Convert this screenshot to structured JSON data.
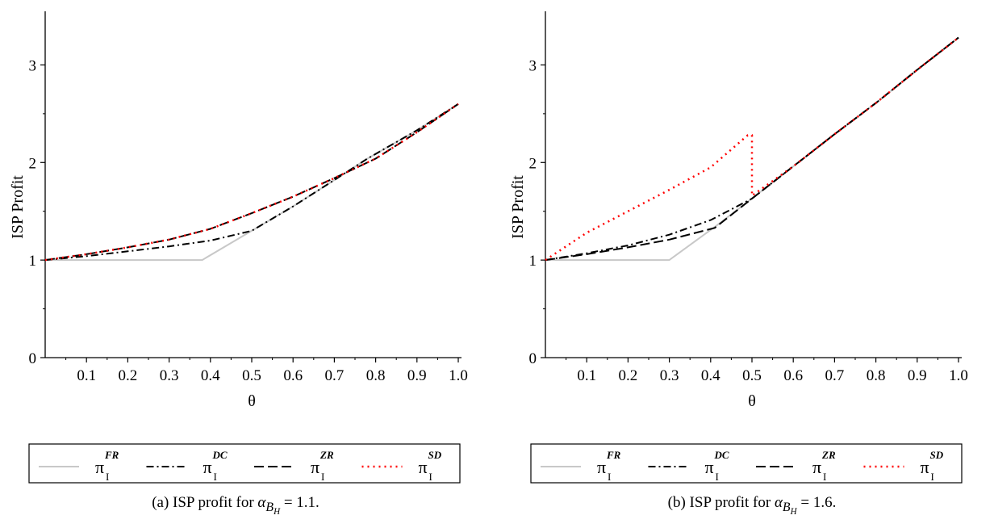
{
  "chart_data": [
    {
      "type": "line",
      "title": "",
      "xlabel": "θ",
      "ylabel": "ISP Profit",
      "xlim": [
        0,
        1.0
      ],
      "ylim": [
        0,
        3.5
      ],
      "x_ticks": [
        0.1,
        0.2,
        0.3,
        0.4,
        0.5,
        0.6,
        0.7,
        0.8,
        0.9,
        1.0
      ],
      "x_tick_labels": [
        "0.1",
        "0.2",
        "0.3",
        "0.4",
        "0.5",
        "0.6",
        "0.7",
        "0.8",
        "0.9",
        "1.0"
      ],
      "y_ticks": [
        0,
        1,
        2,
        3
      ],
      "y_tick_labels": [
        "0",
        "1",
        "2",
        "3"
      ],
      "legend_position": "bottom",
      "series": [
        {
          "key": "FR",
          "symbol": "π",
          "sup": "FR",
          "sub": "I",
          "style": "solid",
          "color": "#c8c8c8",
          "x": [
            0,
            0.38,
            0.5,
            0.6,
            0.7,
            0.78,
            0.9,
            1.0
          ],
          "y": [
            1.0,
            1.0,
            1.3,
            1.55,
            1.82,
            2.04,
            2.33,
            2.6
          ]
        },
        {
          "key": "DC",
          "symbol": "π",
          "sup": "DC",
          "sub": "I",
          "style": "dashdot",
          "color": "#000000",
          "x": [
            0,
            0.1,
            0.2,
            0.3,
            0.4,
            0.5,
            0.6,
            0.7,
            0.78,
            0.9,
            1.0
          ],
          "y": [
            1.0,
            1.04,
            1.09,
            1.14,
            1.2,
            1.3,
            1.55,
            1.82,
            2.04,
            2.33,
            2.6
          ]
        },
        {
          "key": "ZR",
          "symbol": "π",
          "sup": "ZR",
          "sub": "I",
          "style": "dash",
          "color": "#000000",
          "x": [
            0,
            0.1,
            0.2,
            0.3,
            0.4,
            0.5,
            0.6,
            0.7,
            0.8,
            0.9,
            1.0
          ],
          "y": [
            1.0,
            1.06,
            1.13,
            1.21,
            1.32,
            1.48,
            1.65,
            1.84,
            2.04,
            2.31,
            2.6
          ]
        },
        {
          "key": "SD",
          "symbol": "π",
          "sup": "SD",
          "sub": "I",
          "style": "dot",
          "color": "#ff0000",
          "x": [
            0,
            0.1,
            0.2,
            0.3,
            0.4,
            0.5,
            0.6,
            0.7,
            0.8,
            0.9,
            1.0
          ],
          "y": [
            1.0,
            1.06,
            1.13,
            1.21,
            1.32,
            1.48,
            1.65,
            1.84,
            2.04,
            2.31,
            2.6
          ]
        }
      ]
    },
    {
      "type": "line",
      "title": "",
      "xlabel": "θ",
      "ylabel": "ISP Profit",
      "xlim": [
        0,
        1.0
      ],
      "ylim": [
        0,
        3.5
      ],
      "x_ticks": [
        0.1,
        0.2,
        0.3,
        0.4,
        0.5,
        0.6,
        0.7,
        0.8,
        0.9,
        1.0
      ],
      "x_tick_labels": [
        "0.1",
        "0.2",
        "0.3",
        "0.4",
        "0.5",
        "0.6",
        "0.7",
        "0.8",
        "0.9",
        "1.0"
      ],
      "y_ticks": [
        0,
        1,
        2,
        3
      ],
      "y_tick_labels": [
        "0",
        "1",
        "2",
        "3"
      ],
      "legend_position": "bottom",
      "series": [
        {
          "key": "FR",
          "symbol": "π",
          "sup": "FR",
          "sub": "I",
          "style": "solid",
          "color": "#c8c8c8",
          "x": [
            0,
            0.3,
            0.41,
            0.5,
            0.6,
            0.7,
            0.8,
            0.9,
            1.0
          ],
          "y": [
            1.0,
            1.0,
            1.34,
            1.63,
            1.96,
            2.29,
            2.61,
            2.95,
            3.28
          ]
        },
        {
          "key": "DC",
          "symbol": "π",
          "sup": "DC",
          "sub": "I",
          "style": "dashdot",
          "color": "#000000",
          "x": [
            0,
            0.1,
            0.2,
            0.3,
            0.4,
            0.5,
            0.6,
            0.7,
            0.8,
            0.9,
            1.0
          ],
          "y": [
            1.0,
            1.07,
            1.15,
            1.26,
            1.41,
            1.63,
            1.96,
            2.29,
            2.61,
            2.95,
            3.28
          ]
        },
        {
          "key": "ZR",
          "symbol": "π",
          "sup": "ZR",
          "sub": "I",
          "style": "dash",
          "color": "#000000",
          "x": [
            0,
            0.1,
            0.2,
            0.3,
            0.41,
            0.5,
            0.6,
            0.7,
            0.8,
            0.9,
            1.0
          ],
          "y": [
            1.0,
            1.06,
            1.13,
            1.21,
            1.33,
            1.63,
            1.96,
            2.29,
            2.61,
            2.95,
            3.28
          ]
        },
        {
          "key": "SD",
          "symbol": "π",
          "sup": "SD",
          "sub": "I",
          "style": "dot",
          "color": "#ff0000",
          "x": [
            0,
            0.1,
            0.2,
            0.3,
            0.4,
            0.49,
            0.5,
            0.5,
            0.6,
            0.7,
            0.8,
            0.9,
            1.0
          ],
          "y": [
            1.0,
            1.28,
            1.5,
            1.72,
            1.95,
            2.28,
            2.28,
            1.66,
            1.96,
            2.29,
            2.61,
            2.95,
            3.28
          ]
        }
      ]
    }
  ],
  "captions": [
    {
      "prefix": "(a) ISP profit for ",
      "var": "α",
      "sub1": "B",
      "sub2": "H",
      "rest": " = 1.1."
    },
    {
      "prefix": "(b) ISP profit for ",
      "var": "α",
      "sub1": "B",
      "sub2": "H",
      "rest": " = 1.6."
    }
  ]
}
